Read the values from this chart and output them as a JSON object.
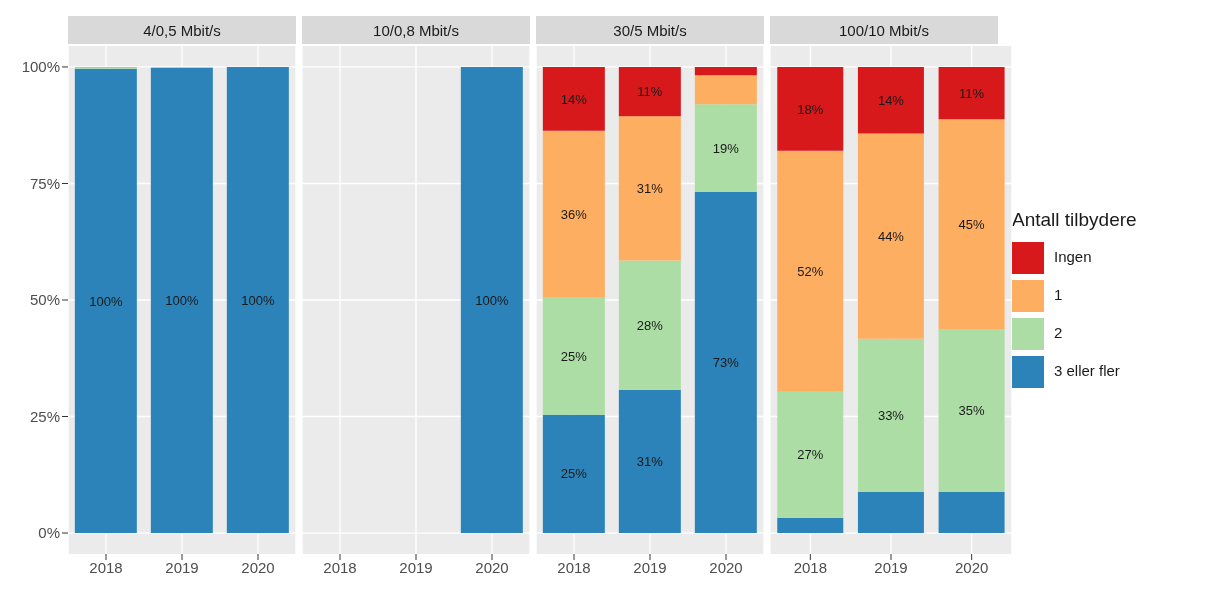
{
  "chart_data": [
    {
      "type": "bar",
      "title": "4/0,5 Mbit/s",
      "stacked": true,
      "categories": [
        "2018",
        "2019",
        "2020"
      ],
      "ylim": [
        -4.5,
        104.5
      ],
      "yticks": [
        {
          "value": 0,
          "label": "0%"
        },
        {
          "value": 25,
          "label": "25%"
        },
        {
          "value": 50,
          "label": "50%"
        },
        {
          "value": 75,
          "label": "75%"
        },
        {
          "value": 100,
          "label": "100%"
        }
      ],
      "grid": true,
      "series": [
        {
          "color": "#2b83ba",
          "values": [
            99.6,
            99.8,
            100
          ],
          "value_labels": [
            "100%",
            "100%",
            "100%"
          ]
        },
        {
          "color": "#abdda4",
          "values": [
            0.2,
            0.2,
            0
          ],
          "value_labels": [
            null,
            null,
            null
          ]
        },
        {
          "color": "#fdae61",
          "values": [
            0.2,
            0,
            0
          ],
          "value_labels": [
            null,
            null,
            null
          ]
        },
        {
          "color": "#d7191c",
          "values": [
            0,
            0,
            0
          ],
          "value_labels": [
            null,
            null,
            null
          ]
        }
      ]
    },
    {
      "type": "bar",
      "title": "10/0,8 Mbit/s",
      "stacked": true,
      "categories": [
        "2018",
        "2019",
        "2020"
      ],
      "ylim": [
        -4.5,
        104.5
      ],
      "yticks": [
        0,
        25,
        50,
        75,
        100
      ],
      "grid": true,
      "tick_labels": "x",
      "series": [
        {
          "color": "#2b83ba",
          "values": [
            null,
            null,
            100
          ],
          "value_labels": [
            null,
            null,
            "100%"
          ]
        },
        {
          "color": "#abdda4",
          "values": [
            null,
            null,
            0
          ],
          "value_labels": [
            null,
            null,
            null
          ]
        },
        {
          "color": "#fdae61",
          "values": [
            null,
            null,
            0
          ],
          "value_labels": [
            null,
            null,
            null
          ]
        },
        {
          "color": "#d7191c",
          "values": [
            null,
            null,
            0
          ],
          "value_labels": [
            null,
            null,
            null
          ]
        }
      ]
    },
    {
      "type": "bar",
      "title": "30/5 Mbit/s",
      "stacked": true,
      "categories": [
        "2018",
        "2019",
        "2020"
      ],
      "ylim": [
        -4.5,
        104.5
      ],
      "yticks": [
        0,
        25,
        50,
        75,
        100
      ],
      "grid": true,
      "tick_labels": "x",
      "series": [
        {
          "color": "#2b83ba",
          "values": [
            25.4,
            30.7,
            73.2
          ],
          "value_labels": [
            "25%",
            "31%",
            "73%"
          ]
        },
        {
          "color": "#abdda4",
          "values": [
            25.1,
            27.8,
            18.8
          ],
          "value_labels": [
            "25%",
            "28%",
            "19%"
          ]
        },
        {
          "color": "#fdae61",
          "values": [
            35.8,
            30.9,
            6.2
          ],
          "value_labels": [
            "36%",
            "31%",
            null
          ]
        },
        {
          "color": "#d7191c",
          "values": [
            13.7,
            10.6,
            1.8
          ],
          "value_labels": [
            "14%",
            "11%",
            null
          ]
        }
      ]
    },
    {
      "type": "bar",
      "title": "100/10 Mbit/s",
      "stacked": true,
      "categories": [
        "2018",
        "2019",
        "2020"
      ],
      "ylim": [
        -4.5,
        104.5
      ],
      "yticks": [
        0,
        25,
        50,
        75,
        100
      ],
      "grid": true,
      "legend": "right",
      "legend_title": "Antall tilbydere",
      "tick_labels": "x",
      "series": [
        {
          "name": "3 eller fler",
          "color": "#2b83ba",
          "values": [
            3.3,
            8.8,
            8.8
          ],
          "value_labels": [
            null,
            null,
            null
          ]
        },
        {
          "name": "2",
          "color": "#abdda4",
          "values": [
            27,
            32.9,
            35
          ],
          "value_labels": [
            "27%",
            "33%",
            "35%"
          ]
        },
        {
          "name": "1",
          "color": "#fdae61",
          "values": [
            51.7,
            44,
            45
          ],
          "value_labels": [
            "52%",
            "44%",
            "45%"
          ]
        },
        {
          "name": "Ingen",
          "color": "#d7191c",
          "values": [
            18,
            14.3,
            11.2
          ],
          "value_labels": [
            "18%",
            "14%",
            "11%"
          ]
        }
      ]
    }
  ]
}
